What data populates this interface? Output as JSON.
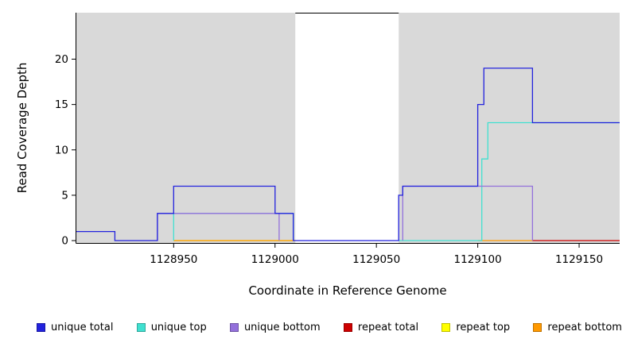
{
  "chart_data": {
    "type": "line",
    "title": "",
    "xlabel": "Coordinate in Reference Genome",
    "ylabel": "Read Coverage Depth",
    "xlim": [
      1128902,
      1129170
    ],
    "ylim": [
      -0.26,
      25.12
    ],
    "x_ticks": [
      1128950,
      1129000,
      1129050,
      1129100,
      1129150
    ],
    "y_ticks": [
      0,
      5,
      10,
      15,
      20
    ],
    "grid": false,
    "legend_position": "bottom",
    "plot_background": "#ffffff",
    "shaded_regions": [
      {
        "x0": 1128902,
        "x1": 1129010,
        "color": "#d9d9d9"
      },
      {
        "x0": 1129061,
        "x1": 1129170,
        "color": "#d9d9d9"
      }
    ],
    "gap_region": {
      "x0": 1129010,
      "x1": 1129061
    },
    "series": [
      {
        "name": "repeat top",
        "color": "#ffff00",
        "segments": [
          [
            [
              1128950,
              0
            ],
            [
              1129010,
              0
            ]
          ]
        ]
      },
      {
        "name": "repeat bottom",
        "color": "#ff9900",
        "segments": [
          [
            [
              1128950,
              0
            ],
            [
              1129010,
              0
            ]
          ],
          [
            [
              1129100,
              0
            ],
            [
              1129127,
              0
            ]
          ]
        ]
      },
      {
        "name": "repeat total",
        "color": "#cd0000",
        "segments": [
          [
            [
              1129127,
              0
            ],
            [
              1129170,
              0
            ]
          ]
        ]
      },
      {
        "name": "unique top",
        "color": "#40e0d0",
        "segments": [
          [
            [
              1128950,
              0
            ],
            [
              1128950,
              3
            ],
            [
              1129009,
              3
            ],
            [
              1129009,
              0
            ]
          ],
          [
            [
              1129061,
              0
            ],
            [
              1129102,
              0
            ],
            [
              1129102,
              9
            ],
            [
              1129105,
              9
            ],
            [
              1129105,
              13
            ],
            [
              1129170,
              13
            ]
          ]
        ]
      },
      {
        "name": "unique bottom",
        "color": "#9370db",
        "segments": [
          [
            [
              1128942,
              0
            ],
            [
              1128942,
              3
            ],
            [
              1129002,
              3
            ],
            [
              1129002,
              0
            ]
          ],
          [
            [
              1129063,
              0
            ],
            [
              1129063,
              6
            ],
            [
              1129127,
              6
            ],
            [
              1129127,
              0
            ]
          ]
        ]
      },
      {
        "name": "unique total",
        "color": "#2222dd",
        "segments": [
          [
            [
              1128902,
              1
            ],
            [
              1128921,
              1
            ],
            [
              1128921,
              0
            ],
            [
              1128942,
              0
            ],
            [
              1128942,
              3
            ],
            [
              1128950,
              3
            ],
            [
              1128950,
              6
            ],
            [
              1129000,
              6
            ],
            [
              1129000,
              3
            ],
            [
              1129009,
              3
            ],
            [
              1129009,
              0
            ],
            [
              1129061,
              0
            ],
            [
              1129061,
              5
            ],
            [
              1129063,
              5
            ],
            [
              1129063,
              6
            ],
            [
              1129100,
              6
            ],
            [
              1129100,
              15
            ],
            [
              1129103,
              15
            ],
            [
              1129103,
              19
            ],
            [
              1129127,
              19
            ],
            [
              1129127,
              13
            ],
            [
              1129170,
              13
            ]
          ]
        ]
      }
    ]
  },
  "legend": {
    "items": [
      {
        "label": "unique total",
        "color": "#2222dd"
      },
      {
        "label": "unique top",
        "color": "#40e0d0"
      },
      {
        "label": "unique bottom",
        "color": "#9370db"
      },
      {
        "label": "repeat total",
        "color": "#cd0000"
      },
      {
        "label": "repeat top",
        "color": "#ffff00"
      },
      {
        "label": "repeat bottom",
        "color": "#ff9900"
      }
    ]
  }
}
